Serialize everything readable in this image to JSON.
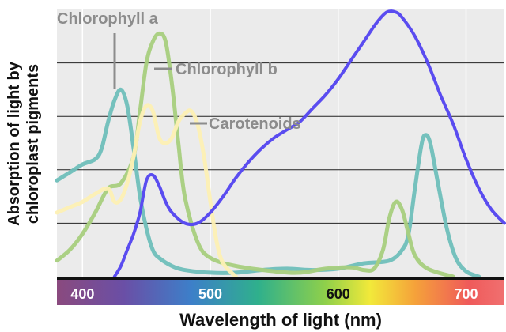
{
  "chart_data": {
    "type": "line",
    "title": "",
    "xlabel": "Wavelength of light (nm)",
    "ylabel_lines": [
      "Absorption of light by",
      "chloroplast pigments"
    ],
    "xlim": [
      380,
      730
    ],
    "ylim": [
      0,
      1
    ],
    "x_ticks": [
      400,
      500,
      600,
      700
    ],
    "grid": {
      "vertical": true,
      "horizontal": true,
      "h_lines": [
        0.2,
        0.4,
        0.6,
        0.8
      ]
    },
    "colors": {
      "plot_bg": "#ebebeb",
      "grid": "#222222",
      "chlorophyll_a": "#6fbfba",
      "chlorophyll_b": "#a8cf7e",
      "carotenoids": "#fdf0b4",
      "action_spectrum": "#5a4cf0",
      "annotation": "#8c8c8c"
    },
    "annotations": [
      {
        "text": "Chlorophyll a",
        "series": "chlorophyll_a"
      },
      {
        "text": "Chlorophyll b",
        "series": "chlorophyll_b"
      },
      {
        "text": "Carotenoids",
        "series": "carotenoids"
      }
    ],
    "series": [
      {
        "key": "chlorophyll_a",
        "points": [
          [
            380,
            0.36
          ],
          [
            390,
            0.39
          ],
          [
            400,
            0.42
          ],
          [
            410,
            0.44
          ],
          [
            415,
            0.48
          ],
          [
            420,
            0.58
          ],
          [
            425,
            0.66
          ],
          [
            430,
            0.7
          ],
          [
            435,
            0.64
          ],
          [
            440,
            0.48
          ],
          [
            445,
            0.3
          ],
          [
            450,
            0.18
          ],
          [
            455,
            0.1
          ],
          [
            460,
            0.07
          ],
          [
            470,
            0.04
          ],
          [
            480,
            0.025
          ],
          [
            500,
            0.015
          ],
          [
            520,
            0.015
          ],
          [
            540,
            0.025
          ],
          [
            560,
            0.03
          ],
          [
            580,
            0.025
          ],
          [
            600,
            0.03
          ],
          [
            620,
            0.05
          ],
          [
            640,
            0.06
          ],
          [
            650,
            0.1
          ],
          [
            655,
            0.16
          ],
          [
            660,
            0.33
          ],
          [
            665,
            0.49
          ],
          [
            668,
            0.53
          ],
          [
            672,
            0.5
          ],
          [
            678,
            0.35
          ],
          [
            685,
            0.18
          ],
          [
            692,
            0.07
          ],
          [
            700,
            0.02
          ],
          [
            710,
            0.0
          ]
        ]
      },
      {
        "key": "chlorophyll_b",
        "points": [
          [
            380,
            0.06
          ],
          [
            390,
            0.1
          ],
          [
            400,
            0.16
          ],
          [
            410,
            0.24
          ],
          [
            420,
            0.33
          ],
          [
            430,
            0.35
          ],
          [
            440,
            0.45
          ],
          [
            445,
            0.62
          ],
          [
            450,
            0.8
          ],
          [
            455,
            0.88
          ],
          [
            460,
            0.91
          ],
          [
            465,
            0.88
          ],
          [
            470,
            0.72
          ],
          [
            475,
            0.5
          ],
          [
            480,
            0.3
          ],
          [
            490,
            0.13
          ],
          [
            500,
            0.07
          ],
          [
            520,
            0.04
          ],
          [
            550,
            0.02
          ],
          [
            570,
            0.015
          ],
          [
            590,
            0.03
          ],
          [
            610,
            0.035
          ],
          [
            620,
            0.025
          ],
          [
            628,
            0.03
          ],
          [
            635,
            0.1
          ],
          [
            640,
            0.22
          ],
          [
            645,
            0.28
          ],
          [
            650,
            0.25
          ],
          [
            655,
            0.16
          ],
          [
            660,
            0.08
          ],
          [
            670,
            0.03
          ],
          [
            690,
            0.0
          ]
        ]
      },
      {
        "key": "carotenoids",
        "points": [
          [
            380,
            0.24
          ],
          [
            390,
            0.26
          ],
          [
            400,
            0.28
          ],
          [
            410,
            0.31
          ],
          [
            420,
            0.33
          ],
          [
            425,
            0.28
          ],
          [
            430,
            0.29
          ],
          [
            435,
            0.35
          ],
          [
            440,
            0.45
          ],
          [
            445,
            0.58
          ],
          [
            450,
            0.64
          ],
          [
            455,
            0.62
          ],
          [
            460,
            0.52
          ],
          [
            465,
            0.5
          ],
          [
            470,
            0.52
          ],
          [
            475,
            0.58
          ],
          [
            480,
            0.61
          ],
          [
            485,
            0.62
          ],
          [
            490,
            0.57
          ],
          [
            495,
            0.45
          ],
          [
            500,
            0.28
          ],
          [
            505,
            0.13
          ],
          [
            510,
            0.05
          ],
          [
            520,
            0.0
          ]
        ]
      },
      {
        "key": "action_spectrum",
        "points": [
          [
            425,
            0.0
          ],
          [
            430,
            0.04
          ],
          [
            435,
            0.1
          ],
          [
            440,
            0.16
          ],
          [
            445,
            0.24
          ],
          [
            450,
            0.36
          ],
          [
            455,
            0.38
          ],
          [
            460,
            0.34
          ],
          [
            465,
            0.28
          ],
          [
            470,
            0.24
          ],
          [
            480,
            0.2
          ],
          [
            490,
            0.2
          ],
          [
            500,
            0.24
          ],
          [
            510,
            0.3
          ],
          [
            520,
            0.37
          ],
          [
            530,
            0.43
          ],
          [
            540,
            0.48
          ],
          [
            550,
            0.52
          ],
          [
            560,
            0.55
          ],
          [
            570,
            0.58
          ],
          [
            580,
            0.63
          ],
          [
            590,
            0.68
          ],
          [
            600,
            0.74
          ],
          [
            610,
            0.81
          ],
          [
            620,
            0.88
          ],
          [
            630,
            0.95
          ],
          [
            638,
            0.99
          ],
          [
            645,
            0.99
          ],
          [
            650,
            0.97
          ],
          [
            660,
            0.9
          ],
          [
            670,
            0.8
          ],
          [
            680,
            0.68
          ],
          [
            690,
            0.57
          ],
          [
            700,
            0.44
          ],
          [
            710,
            0.33
          ],
          [
            720,
            0.25
          ],
          [
            730,
            0.2
          ]
        ]
      }
    ]
  }
}
